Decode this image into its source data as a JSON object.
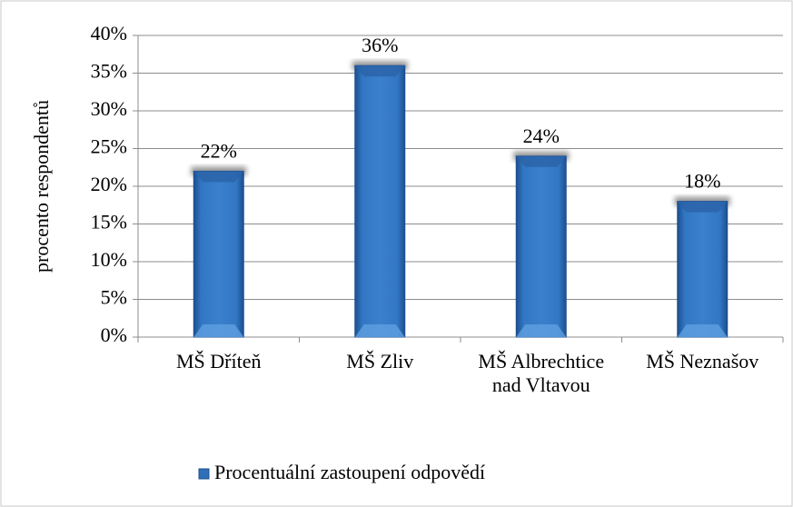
{
  "chart_data": {
    "type": "bar",
    "categories": [
      "MŠ Dříteň",
      "MŠ Zliv",
      "MŠ Albrechtice nad Vltavou",
      "MŠ Neznašov"
    ],
    "series": [
      {
        "name": "Procentuální zastoupení odpovědí",
        "color": "#2f6fb8",
        "values": [
          22,
          36,
          24,
          18
        ],
        "value_labels": [
          "22%",
          "36%",
          "24%",
          "18%"
        ]
      }
    ],
    "ylabel": "procento respondentů",
    "ylim": [
      0,
      40
    ],
    "yticks": [
      {
        "value": 0,
        "label": "0%"
      },
      {
        "value": 5,
        "label": "5%"
      },
      {
        "value": 10,
        "label": "10%"
      },
      {
        "value": 15,
        "label": "15%"
      },
      {
        "value": 20,
        "label": "20%"
      },
      {
        "value": 25,
        "label": "25%"
      },
      {
        "value": 30,
        "label": "30%"
      },
      {
        "value": 35,
        "label": "35%"
      },
      {
        "value": 40,
        "label": "40%"
      }
    ],
    "grid": true,
    "legend": "bottom"
  }
}
